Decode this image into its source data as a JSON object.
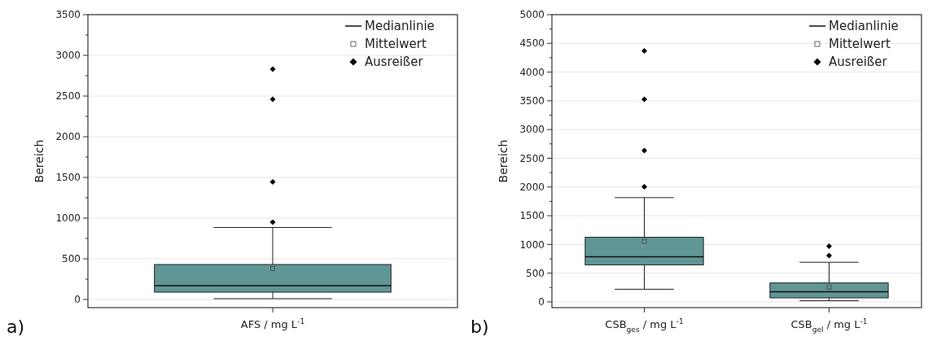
{
  "chart_data": [
    {
      "type": "box",
      "ylabel": "Bereich",
      "categories": [
        "AFS / mg L$^{-1}$"
      ],
      "ylim": [
        -100,
        3500
      ],
      "yticks": [
        0,
        {
          "value": 250,
          "label": null
        },
        500,
        {
          "value": 750,
          "label": null
        },
        1000,
        {
          "value": 1250,
          "label": null
        },
        1500,
        {
          "value": 1750,
          "label": null
        },
        2000,
        {
          "value": 2250,
          "label": null
        },
        2500,
        {
          "value": 2750,
          "label": null
        },
        3000,
        {
          "value": 3250,
          "label": null
        },
        3500
      ],
      "grid": "y",
      "annotations": [
        "a)",
        "Medianlinie",
        "Mittelwert",
        "Ausreißer"
      ],
      "series": [
        {
          "color": "#609696",
          "boxes": [
            {
              "low": 10,
              "q1": 90,
              "median": 170,
              "q3": 430,
              "high": 885,
              "mean": 380,
              "outliers": [
                950,
                1445,
                2460,
                2830
              ]
            }
          ]
        }
      ]
    },
    {
      "type": "box",
      "ylabel": "Bereich",
      "categories": [
        "CSB$_{ges}$ / mg L$^{-1}$",
        "CSB$_{gel}$ / mg L$^{-1}$"
      ],
      "ylim": [
        -100,
        5000
      ],
      "yticks": [
        0,
        {
          "value": 250,
          "label": null
        },
        500,
        {
          "value": 750,
          "label": null
        },
        1000,
        {
          "value": 1250,
          "label": null
        },
        1500,
        {
          "value": 1750,
          "label": null
        },
        2000,
        {
          "value": 2250,
          "label": null
        },
        2500,
        {
          "value": 2750,
          "label": null
        },
        3000,
        {
          "value": 3250,
          "label": null
        },
        3500,
        {
          "value": 3750,
          "label": null
        },
        4000,
        {
          "value": 4250,
          "label": null
        },
        4500,
        {
          "value": 4750,
          "label": null
        },
        5000
      ],
      "grid": "y",
      "annotations": [
        "b)",
        "Medianlinie",
        "Mittelwert",
        "Ausreißer"
      ],
      "series": [
        {
          "color": "#609696",
          "boxes": [
            {
              "low": 220,
              "q1": 645,
              "median": 785,
              "q3": 1125,
              "high": 1815,
              "mean": 1055,
              "outliers": [
                2005,
                2635,
                3525,
                4370
              ]
            },
            {
              "low": 20,
              "q1": 70,
              "median": 175,
              "q3": 330,
              "high": 690,
              "mean": 260,
              "outliers": [
                805,
                970
              ]
            }
          ]
        }
      ]
    }
  ]
}
